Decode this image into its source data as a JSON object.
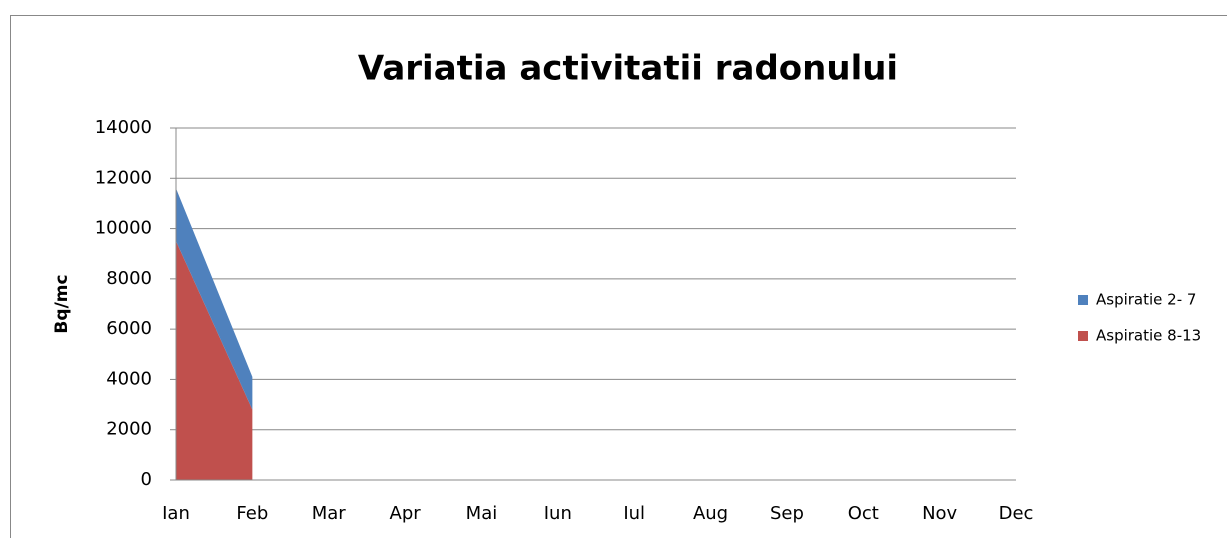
{
  "chart_data": {
    "type": "stacked-area",
    "title": "Variatia activitatii radonului",
    "y_label": "Bq/mc",
    "categories": [
      "Ian",
      "Feb",
      "Mar",
      "Apr",
      "Mai",
      "Iun",
      "Iul",
      "Aug",
      "Sep",
      "Oct",
      "Nov",
      "Dec"
    ],
    "series": [
      {
        "name": "Aspiratie 8-13",
        "color": "#c0504d",
        "values": [
          9500,
          2800,
          null,
          null,
          null,
          null,
          null,
          null,
          null,
          null,
          null,
          null
        ]
      },
      {
        "name": "Aspiratie 2- 7",
        "color": "#4f81bd",
        "values": [
          2100,
          1300,
          null,
          null,
          null,
          null,
          null,
          null,
          null,
          null,
          null,
          null
        ]
      }
    ],
    "ylim": [
      0,
      14000
    ],
    "yticks": [
      0,
      2000,
      4000,
      6000,
      8000,
      10000,
      12000,
      14000
    ],
    "grid": true,
    "legend": "right"
  }
}
